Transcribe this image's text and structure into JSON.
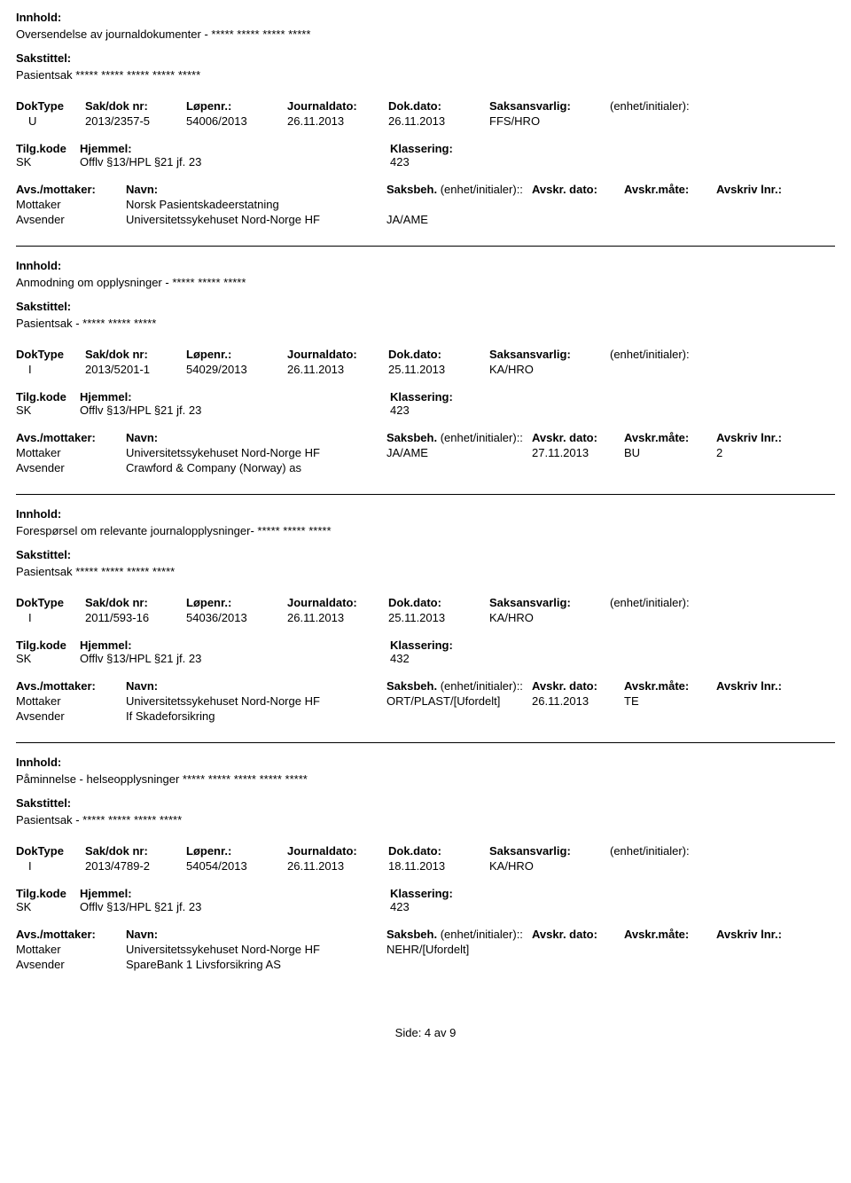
{
  "labels": {
    "innhold": "Innhold:",
    "sakstittel": "Sakstittel:",
    "dokType": "DokType",
    "sakDokNr": "Sak/dok nr:",
    "lopenr": "Løpenr.:",
    "journaldato": "Journaldato:",
    "dokDato": "Dok.dato:",
    "saksansvarlig": "Saksansvarlig:",
    "enhetInitialer": "(enhet/initialer):",
    "tilgKode": "Tilg.kode",
    "hjemmel": "Hjemmel:",
    "klassering": "Klassering:",
    "avsMottaker": "Avs./mottaker:",
    "navn": "Navn:",
    "saksbeh": "Saksbeh.",
    "avskrDato": "Avskr. dato:",
    "avskrMate": "Avskr.måte:",
    "avskrivLnr": "Avskriv lnr.:",
    "mottaker": "Mottaker",
    "avsender": "Avsender"
  },
  "records": [
    {
      "innhold": "Oversendelse av journaldokumenter - ***** ***** ***** *****",
      "sakstittel": "Pasientsak ***** ***** ***** ***** *****",
      "dokType": "U",
      "sakDokNr": "2013/2357-5",
      "lopenr": "54006/2013",
      "journaldato": "26.11.2013",
      "dokDato": "26.11.2013",
      "saksansvarlig": "FFS/HRO",
      "tilgKode": "SK",
      "hjemmel": "Offlv §13/HPL §21 jf. 23",
      "klassering": "423",
      "parties": [
        {
          "role": "Mottaker",
          "name": "Norsk Pasientskadeerstatning",
          "saksbeh": "",
          "avskrDato": "",
          "avskrMate": "",
          "avskrivLnr": ""
        },
        {
          "role": "Avsender",
          "name": "Universitetssykehuset Nord-Norge HF",
          "saksbeh": "JA/AME",
          "avskrDato": "",
          "avskrMate": "",
          "avskrivLnr": ""
        }
      ]
    },
    {
      "innhold": "Anmodning om opplysninger - ***** ***** *****",
      "sakstittel": "Pasientsak - ***** ***** *****",
      "dokType": "I",
      "sakDokNr": "2013/5201-1",
      "lopenr": "54029/2013",
      "journaldato": "26.11.2013",
      "dokDato": "25.11.2013",
      "saksansvarlig": "KA/HRO",
      "tilgKode": "SK",
      "hjemmel": "Offlv §13/HPL §21 jf. 23",
      "klassering": "423",
      "parties": [
        {
          "role": "Mottaker",
          "name": "Universitetssykehuset Nord-Norge HF",
          "saksbeh": "JA/AME",
          "avskrDato": "27.11.2013",
          "avskrMate": "BU",
          "avskrivLnr": "2"
        },
        {
          "role": "Avsender",
          "name": "Crawford & Company (Norway) as",
          "saksbeh": "",
          "avskrDato": "",
          "avskrMate": "",
          "avskrivLnr": ""
        }
      ]
    },
    {
      "innhold": "Forespørsel om relevante journalopplysninger- ***** ***** *****",
      "sakstittel": "Pasientsak ***** ***** ***** *****",
      "dokType": "I",
      "sakDokNr": "2011/593-16",
      "lopenr": "54036/2013",
      "journaldato": "26.11.2013",
      "dokDato": "25.11.2013",
      "saksansvarlig": "KA/HRO",
      "tilgKode": "SK",
      "hjemmel": "Offlv §13/HPL §21 jf. 23",
      "klassering": "432",
      "parties": [
        {
          "role": "Mottaker",
          "name": "Universitetssykehuset Nord-Norge HF",
          "saksbeh": "ORT/PLAST/[Ufordelt]",
          "avskrDato": "26.11.2013",
          "avskrMate": "TE",
          "avskrivLnr": ""
        },
        {
          "role": "Avsender",
          "name": "If Skadeforsikring",
          "saksbeh": "",
          "avskrDato": "",
          "avskrMate": "",
          "avskrivLnr": ""
        }
      ]
    },
    {
      "innhold": "Påminnelse - helseopplysninger ***** ***** ***** ***** *****",
      "sakstittel": "Pasientsak - ***** ***** ***** *****",
      "dokType": "I",
      "sakDokNr": "2013/4789-2",
      "lopenr": "54054/2013",
      "journaldato": "26.11.2013",
      "dokDato": "18.11.2013",
      "saksansvarlig": "KA/HRO",
      "tilgKode": "SK",
      "hjemmel": "Offlv §13/HPL §21 jf. 23",
      "klassering": "423",
      "parties": [
        {
          "role": "Mottaker",
          "name": "Universitetssykehuset Nord-Norge HF",
          "saksbeh": "NEHR/[Ufordelt]",
          "avskrDato": "",
          "avskrMate": "",
          "avskrivLnr": ""
        },
        {
          "role": "Avsender",
          "name": "SpareBank 1 Livsforsikring AS",
          "saksbeh": "",
          "avskrDato": "",
          "avskrMate": "",
          "avskrivLnr": ""
        }
      ]
    }
  ],
  "footer": "Side: 4 av 9"
}
